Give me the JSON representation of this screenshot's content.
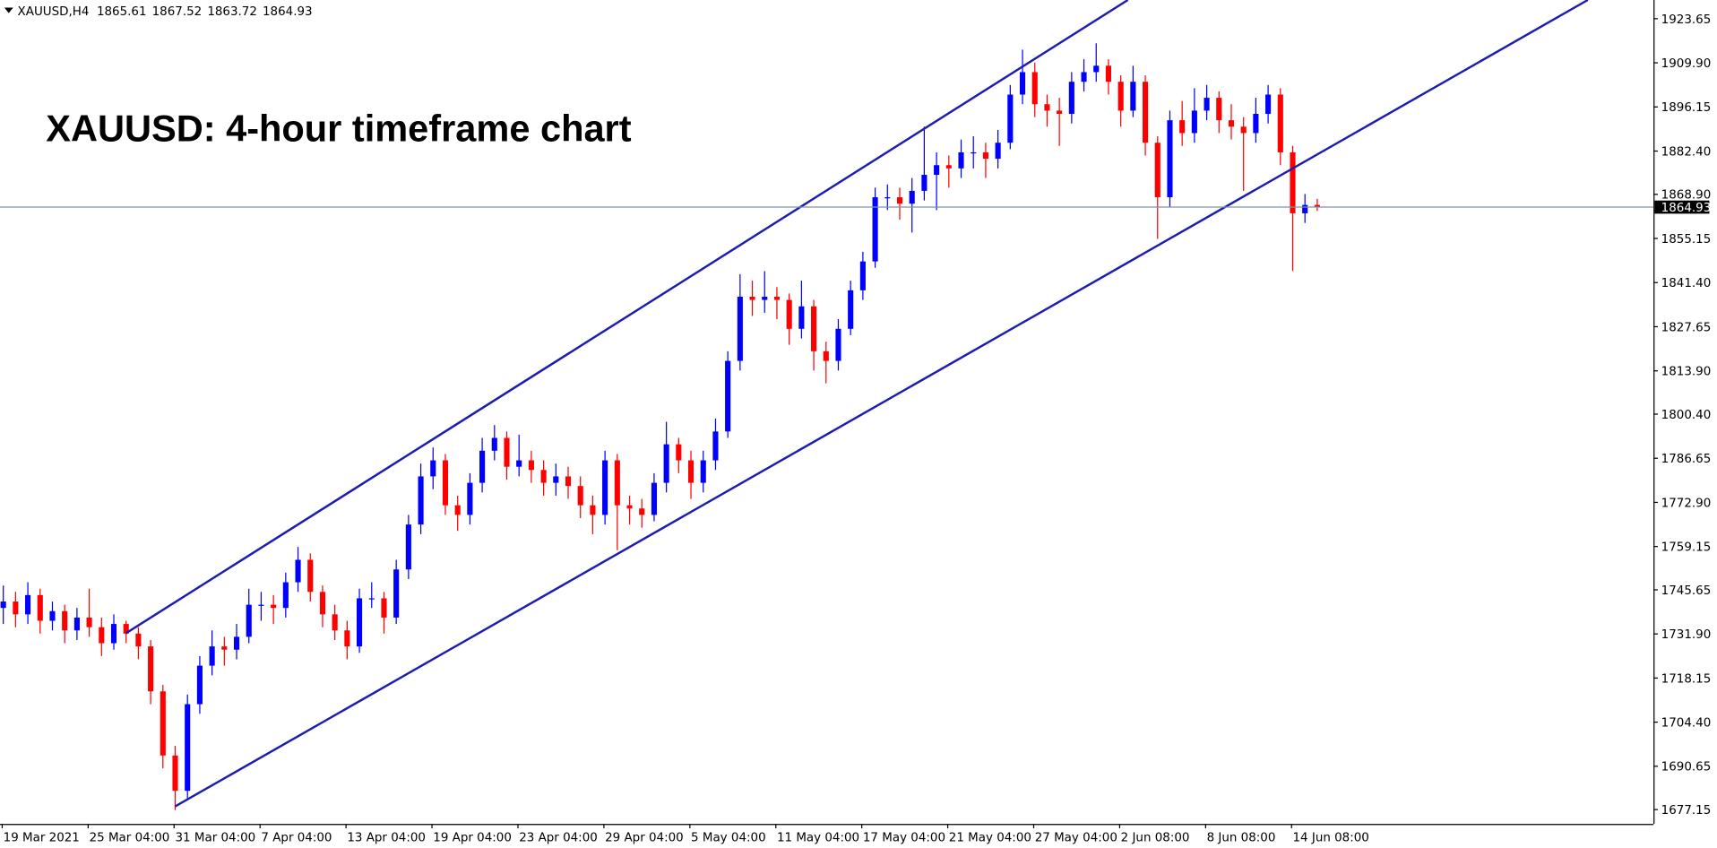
{
  "chart_data": {
    "type": "candlestick",
    "symbol": "XAUUSD,H4",
    "title": "XAUUSD: 4-hour timeframe chart",
    "up_color": "#0000ff",
    "down_color": "#ff0000",
    "price_line_color": "#7e92a8",
    "categories": [
      "19 Mar 2021",
      null,
      null,
      null,
      null,
      null,
      null,
      "25 Mar 04:00",
      null,
      null,
      null,
      null,
      null,
      null,
      "31 Mar 04:00",
      null,
      null,
      null,
      null,
      null,
      null,
      "7 Apr 04:00",
      null,
      null,
      null,
      null,
      null,
      null,
      "13 Apr 04:00",
      null,
      null,
      null,
      null,
      null,
      null,
      "19 Apr 04:00",
      null,
      null,
      null,
      null,
      null,
      null,
      "23 Apr 04:00",
      null,
      null,
      null,
      null,
      null,
      null,
      "29 Apr 04:00",
      null,
      null,
      null,
      null,
      null,
      null,
      "5 May 04:00",
      null,
      null,
      null,
      null,
      null,
      null,
      "11 May 04:00",
      null,
      null,
      null,
      null,
      null,
      null,
      "17 May 04:00",
      null,
      null,
      null,
      null,
      null,
      null,
      "21 May 04:00",
      null,
      null,
      null,
      null,
      null,
      null,
      "27 May 04:00",
      null,
      null,
      null,
      null,
      null,
      null,
      "2 Jun 08:00",
      null,
      null,
      null,
      null,
      null,
      null,
      "8 Jun 08:00",
      null,
      null,
      null,
      null,
      null,
      null,
      "14 Jun 08:00",
      null,
      null
    ],
    "open": [
      1740,
      1742,
      1738,
      1744,
      1736,
      1739,
      1733,
      1737,
      1734,
      1729,
      1735,
      1732,
      1728,
      1714,
      1694,
      1683,
      1710,
      1722,
      1728,
      1727,
      1731,
      1741,
      1741,
      1740,
      1748,
      1755,
      1745,
      1738,
      1733,
      1728,
      1743,
      1743,
      1737,
      1752,
      1766,
      1781,
      1786,
      1772,
      1769,
      1779,
      1789,
      1793,
      1784,
      1786,
      1783,
      1779,
      1781,
      1778,
      1772,
      1769,
      1786,
      1772,
      1771,
      1769,
      1779,
      1791,
      1786,
      1779,
      1786,
      1795,
      1817,
      1837,
      1836,
      1837,
      1836,
      1827,
      1834,
      1820,
      1817,
      1827,
      1839,
      1848,
      1868,
      1868,
      1866,
      1870,
      1875,
      1878,
      1877,
      1882,
      1882,
      1880,
      1885,
      1900,
      1907,
      1897,
      1895,
      1894,
      1904,
      1907,
      1909,
      1904,
      1895,
      1904,
      1885,
      1868,
      1892,
      1888,
      1895,
      1899,
      1892,
      1890,
      1888,
      1894,
      1900,
      1882,
      1863,
      1865.61
    ],
    "high": [
      1747,
      1745,
      1748,
      1746,
      1742,
      1741,
      1740,
      1746,
      1737,
      1738,
      1736,
      1734,
      1730,
      1716,
      1697,
      1713,
      1725,
      1733,
      1731,
      1735,
      1746,
      1745,
      1744,
      1751,
      1759,
      1757,
      1747,
      1741,
      1736,
      1746,
      1748,
      1745,
      1755,
      1769,
      1785,
      1790,
      1788,
      1775,
      1782,
      1793,
      1797,
      1795,
      1794,
      1789,
      1786,
      1785,
      1784,
      1781,
      1775,
      1789,
      1788,
      1775,
      1774,
      1782,
      1798,
      1793,
      1789,
      1789,
      1799,
      1820,
      1844,
      1842,
      1845,
      1840,
      1838,
      1842,
      1836,
      1823,
      1830,
      1842,
      1851,
      1871,
      1872,
      1871,
      1874,
      1890,
      1882,
      1881,
      1886,
      1887,
      1885,
      1889,
      1903,
      1914,
      1910,
      1900,
      1899,
      1907,
      1911,
      1916,
      1911,
      1906,
      1909,
      1906,
      1887,
      1895,
      1898,
      1902,
      1903,
      1901,
      1897,
      1893,
      1899,
      1903,
      1902,
      1884,
      1869,
      1867.52
    ],
    "low": [
      1735,
      1734,
      1735,
      1732,
      1733,
      1729,
      1730,
      1731,
      1725,
      1727,
      1729,
      1724,
      1710,
      1690,
      1677,
      1680,
      1707,
      1719,
      1722,
      1724,
      1729,
      1736,
      1735,
      1737,
      1745,
      1742,
      1734,
      1730,
      1724,
      1726,
      1740,
      1732,
      1735,
      1749,
      1763,
      1777,
      1769,
      1764,
      1766,
      1776,
      1786,
      1780,
      1781,
      1779,
      1775,
      1775,
      1774,
      1768,
      1763,
      1766,
      1758,
      1766,
      1765,
      1767,
      1776,
      1782,
      1774,
      1776,
      1783,
      1793,
      1814,
      1831,
      1832,
      1830,
      1822,
      1824,
      1814,
      1810,
      1814,
      1825,
      1836,
      1846,
      1864,
      1861,
      1857,
      1867,
      1864,
      1871,
      1874,
      1877,
      1874,
      1877,
      1883,
      1897,
      1893,
      1890,
      1884,
      1891,
      1901,
      1904,
      1900,
      1890,
      1893,
      1881,
      1855,
      1865,
      1884,
      1885,
      1892,
      1888,
      1886,
      1870,
      1885,
      1891,
      1878,
      1845,
      1860,
      1863.72
    ],
    "close": [
      1742,
      1738,
      1744,
      1736,
      1739,
      1733,
      1737,
      1734,
      1729,
      1735,
      1732,
      1728,
      1714,
      1694,
      1683,
      1710,
      1722,
      1728,
      1727,
      1731,
      1741,
      1741,
      1740,
      1748,
      1755,
      1745,
      1738,
      1733,
      1728,
      1743,
      1743,
      1737,
      1752,
      1766,
      1781,
      1786,
      1772,
      1769,
      1779,
      1789,
      1793,
      1784,
      1786,
      1783,
      1779,
      1781,
      1778,
      1772,
      1769,
      1786,
      1772,
      1771,
      1769,
      1779,
      1791,
      1786,
      1779,
      1786,
      1795,
      1817,
      1837,
      1836,
      1837,
      1836,
      1827,
      1834,
      1820,
      1817,
      1827,
      1839,
      1848,
      1868,
      1868,
      1866,
      1870,
      1875,
      1878,
      1877,
      1882,
      1882,
      1880,
      1885,
      1900,
      1907,
      1897,
      1895,
      1894,
      1904,
      1907,
      1909,
      1904,
      1895,
      1904,
      1885,
      1868,
      1892,
      1888,
      1895,
      1899,
      1892,
      1890,
      1888,
      1894,
      1900,
      1882,
      1863,
      1865.61,
      1864.93
    ],
    "ylim": [
      1672.69,
      1929.48
    ],
    "yticks": [
      1923.65,
      {
        "value": 1909.9,
        "label": "1909.90"
      },
      1896.15,
      {
        "value": 1882.4,
        "label": "1882.40"
      },
      {
        "value": 1868.9,
        "label": "1868.90"
      },
      1855.15,
      {
        "value": 1841.4,
        "label": "1841.40"
      },
      1827.65,
      {
        "value": 1813.9,
        "label": "1813.90"
      },
      {
        "value": 1800.4,
        "label": "1800.40"
      },
      1786.65,
      {
        "value": 1772.9,
        "label": "1772.90"
      },
      1759.15,
      1745.65,
      {
        "value": 1731.9,
        "label": "1731.90"
      },
      1718.15,
      {
        "value": 1704.4,
        "label": "1704.40"
      },
      1690.65,
      1677.15
    ]
  }
}
